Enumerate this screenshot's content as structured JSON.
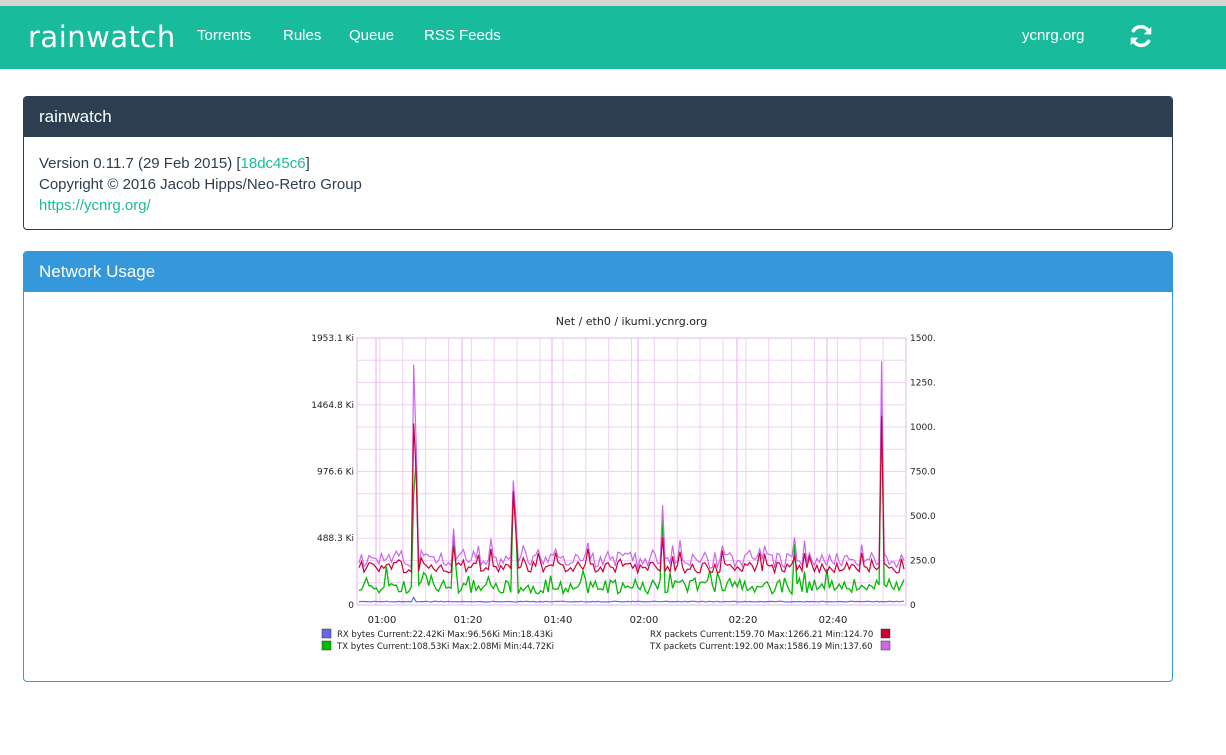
{
  "app": {
    "brand": "rainwatch",
    "nav": [
      "Torrents",
      "Rules",
      "Queue",
      "RSS Feeds"
    ],
    "site": "ycnrg.org",
    "refresh_icon": "refresh-icon"
  },
  "about_panel": {
    "title": "rainwatch",
    "version": "Version 0.11.7 (29 Feb 2015) [",
    "commit": "18dc45c6",
    "version_close": "]",
    "copyright": "Copyright © 2016 Jacob Hipps/Neo-Retro Group",
    "url": "https://ycnrg.org/"
  },
  "network_panel": {
    "title": "Network Usage"
  },
  "chart_data": {
    "type": "line",
    "title": "Net / eth0 / ikumi.ycnrg.org",
    "x_ticks": [
      "01:00",
      "01:20",
      "01:40",
      "02:00",
      "02:20",
      "02:40"
    ],
    "y_left_ticks": [
      "0",
      "488.3 Ki",
      "976.6 Ki",
      "1464.8 Ki",
      "1953.1 Ki"
    ],
    "y_right_ticks": [
      "0",
      "250.0",
      "500.0",
      "750.0",
      "1000.0",
      "1250.0",
      "1500.0"
    ],
    "y_left_range": [
      0,
      1953.1
    ],
    "y_right_range": [
      0,
      1500
    ],
    "legend": [
      {
        "label": "RX bytes Current:22.42Ki   Max:96.56Ki   Min:18.43Ki",
        "color": "#6666ee"
      },
      {
        "label": "TX bytes Current:108.53Ki   Max:2.08Mi   Min:44.72Ki",
        "color": "#00bb00"
      },
      {
        "label": "RX packets Current:159.70   Max:1266.21   Min:124.70",
        "color": "#cc0033"
      },
      {
        "label": "TX packets Current:192.00   Max:1586.19   Min:137.60",
        "color": "#cc66ee"
      }
    ],
    "series": [
      {
        "name": "RX bytes",
        "axis": "left",
        "color": "#6666ee",
        "current": 22.42,
        "max": 96.56,
        "min": 18.43
      },
      {
        "name": "TX bytes",
        "axis": "left",
        "color": "#00bb00",
        "current": 108.53,
        "max": 2129.92,
        "min": 44.72
      },
      {
        "name": "RX packets",
        "axis": "right",
        "color": "#cc0033",
        "current": 159.7,
        "max": 1266.21,
        "min": 124.7
      },
      {
        "name": "TX packets",
        "axis": "right",
        "color": "#cc66ee",
        "current": 192.0,
        "max": 1586.19,
        "min": 137.6
      }
    ],
    "grid": true
  }
}
